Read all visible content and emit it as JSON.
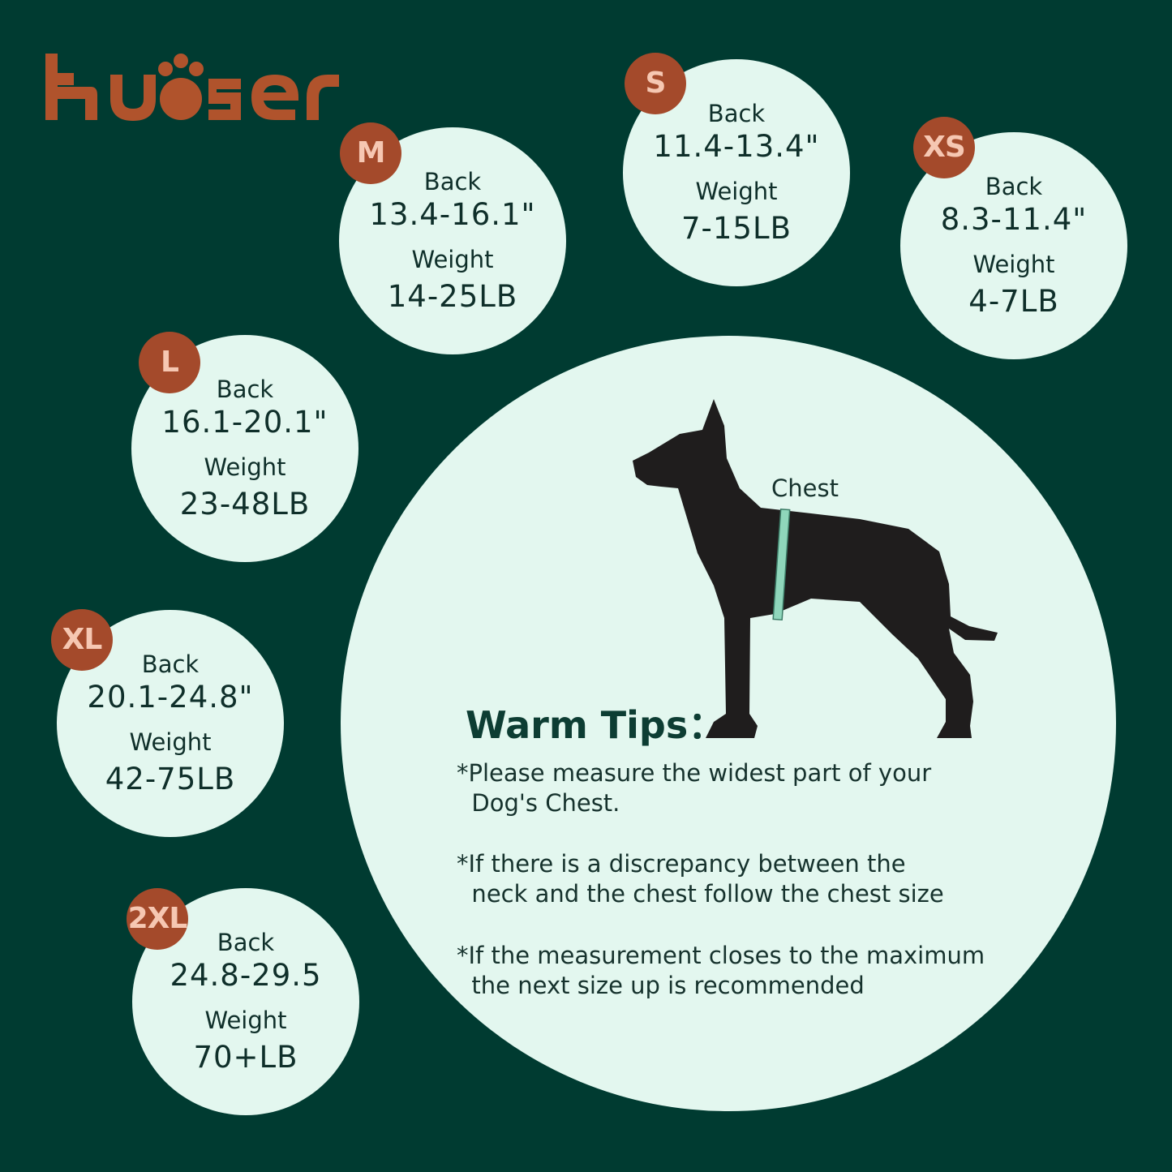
{
  "brand": {
    "logo_text": "kuoser",
    "color": "#b0532c"
  },
  "colors": {
    "background": "#003b31",
    "circle": "#e3f7ef",
    "badge": "#a44a2b",
    "badge_text": "#f6c7b2",
    "tape": "#8fd6bb"
  },
  "sizes": [
    {
      "size": "XS",
      "back_label": "Back",
      "back": "8.3-11.4\"",
      "weight_label": "Weight",
      "weight": "4-7LB"
    },
    {
      "size": "S",
      "back_label": "Back",
      "back": "11.4-13.4\"",
      "weight_label": "Weight",
      "weight": "7-15LB"
    },
    {
      "size": "M",
      "back_label": "Back",
      "back": "13.4-16.1\"",
      "weight_label": "Weight",
      "weight": "14-25LB"
    },
    {
      "size": "L",
      "back_label": "Back",
      "back": "16.1-20.1\"",
      "weight_label": "Weight",
      "weight": "23-48LB"
    },
    {
      "size": "XL",
      "back_label": "Back",
      "back": "20.1-24.8\"",
      "weight_label": "Weight",
      "weight": "42-75LB"
    },
    {
      "size": "2XL",
      "back_label": "Back",
      "back": "24.8-29.5",
      "weight_label": "Weight",
      "weight": "70+LB"
    }
  ],
  "diagram": {
    "chest_label": "Chest",
    "icon": "dog-silhouette-with-tape-measure"
  },
  "tips": {
    "title": "Warm Tips：",
    "items": [
      "*Please measure the widest part of your\n  Dog's Chest.",
      "*If there is a discrepancy between the\n  neck and the chest follow the chest size",
      "*If the measurement closes to the maximum\n  the next size up is recommended"
    ]
  }
}
